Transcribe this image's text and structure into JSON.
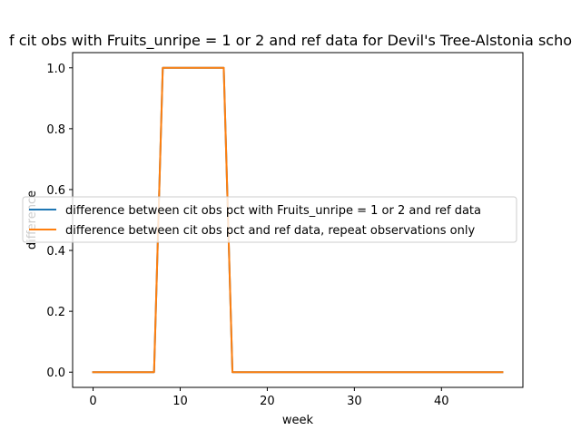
{
  "colors": {
    "series_0": "#1f77b4",
    "series_1": "#ff7f0e",
    "background": "#ffffff",
    "axes": "#000000",
    "legend_edge": "#cccccc"
  },
  "chart_data": {
    "type": "line",
    "title": "f cit obs with Fruits_unripe = 1 or 2 and ref data for Devil's Tree-Alstonia scho",
    "xlabel": "week",
    "ylabel": "difference",
    "xlim": [
      -2.35,
      49.35
    ],
    "ylim": [
      -0.05,
      1.05
    ],
    "xticks": [
      0,
      10,
      20,
      30,
      40
    ],
    "xtick_labels": [
      "0",
      "10",
      "20",
      "30",
      "40"
    ],
    "yticks": [
      0.0,
      0.2,
      0.4,
      0.6,
      0.8,
      1.0
    ],
    "ytick_labels": [
      "0.0",
      "0.2",
      "0.4",
      "0.6",
      "0.8",
      "1.0"
    ],
    "grid": false,
    "legend_position": "center-right",
    "series": [
      {
        "name": "difference between cit obs pct with Fruits_unripe = 1 or 2 and ref data",
        "x": [
          0,
          1,
          2,
          3,
          4,
          5,
          6,
          7,
          8,
          9,
          10,
          11,
          12,
          13,
          14,
          15,
          16,
          17,
          18,
          19,
          20,
          21,
          22,
          23,
          24,
          25,
          26,
          27,
          28,
          29,
          30,
          31,
          32,
          33,
          34,
          35,
          36,
          37,
          38,
          39,
          40,
          41,
          42,
          43,
          44,
          45,
          46,
          47
        ],
        "y": [
          0,
          0,
          0,
          0,
          0,
          0,
          0,
          0,
          1,
          1,
          1,
          1,
          1,
          1,
          1,
          1,
          0,
          0,
          0,
          0,
          0,
          0,
          0,
          0,
          0,
          0,
          0,
          0,
          0,
          0,
          0,
          0,
          0,
          0,
          0,
          0,
          0,
          0,
          0,
          0,
          0,
          0,
          0,
          0,
          0,
          0,
          0,
          0
        ]
      },
      {
        "name": "difference between cit obs pct and ref data, repeat observations only",
        "x": [
          0,
          1,
          2,
          3,
          4,
          5,
          6,
          7,
          8,
          9,
          10,
          11,
          12,
          13,
          14,
          15,
          16,
          17,
          18,
          19,
          20,
          21,
          22,
          23,
          24,
          25,
          26,
          27,
          28,
          29,
          30,
          31,
          32,
          33,
          34,
          35,
          36,
          37,
          38,
          39,
          40,
          41,
          42,
          43,
          44,
          45,
          46,
          47
        ],
        "y": [
          0,
          0,
          0,
          0,
          0,
          0,
          0,
          0,
          1,
          1,
          1,
          1,
          1,
          1,
          1,
          1,
          0,
          0,
          0,
          0,
          0,
          0,
          0,
          0,
          0,
          0,
          0,
          0,
          0,
          0,
          0,
          0,
          0,
          0,
          0,
          0,
          0,
          0,
          0,
          0,
          0,
          0,
          0,
          0,
          0,
          0,
          0,
          0
        ]
      }
    ]
  }
}
